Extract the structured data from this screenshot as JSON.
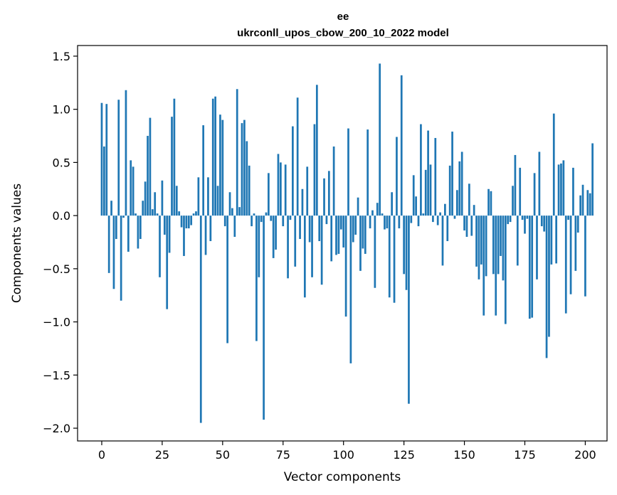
{
  "chart_data": {
    "type": "bar",
    "title": "ee",
    "subtitle": "ukrconll_upos_cbow_200_10_2022 model",
    "xlabel": "Vector components",
    "ylabel": "Components values",
    "xlim": [
      -10,
      209
    ],
    "ylim": [
      -2.12,
      1.6
    ],
    "x_ticks": [
      0,
      25,
      50,
      75,
      100,
      125,
      150,
      175,
      200
    ],
    "y_ticks": [
      -2.0,
      -1.5,
      -1.0,
      -0.5,
      0.0,
      0.5,
      1.0,
      1.5
    ],
    "y_tick_labels": [
      "−2.0",
      "−1.5",
      "−1.0",
      "−0.5",
      "0.0",
      "0.5",
      "1.0",
      "1.5"
    ],
    "bar_color": "#1f77b4",
    "grid": false,
    "values": [
      1.06,
      0.65,
      1.05,
      -0.54,
      0.14,
      -0.69,
      -0.22,
      1.09,
      -0.8,
      -0.02,
      1.18,
      -0.34,
      0.52,
      0.46,
      0.02,
      -0.31,
      -0.22,
      0.14,
      0.32,
      0.75,
      0.92,
      0.06,
      0.22,
      0.02,
      -0.58,
      0.33,
      -0.18,
      -0.88,
      -0.35,
      0.93,
      1.1,
      0.28,
      0.04,
      -0.11,
      -0.38,
      -0.12,
      -0.12,
      -0.09,
      0.02,
      0.04,
      0.36,
      -1.95,
      0.85,
      -0.37,
      0.36,
      -0.24,
      1.1,
      1.12,
      0.28,
      0.95,
      0.9,
      -0.1,
      -1.2,
      0.22,
      0.07,
      -0.2,
      1.19,
      0.08,
      0.87,
      0.9,
      0.7,
      0.47,
      -0.1,
      0.02,
      -1.18,
      -0.58,
      -0.06,
      -1.92,
      0.03,
      0.4,
      -0.05,
      -0.4,
      -0.32,
      0.58,
      0.5,
      -0.1,
      0.48,
      -0.59,
      -0.04,
      0.84,
      -0.48,
      1.11,
      -0.22,
      0.25,
      -0.77,
      0.46,
      -0.25,
      -0.58,
      0.86,
      1.23,
      -0.24,
      -0.65,
      0.35,
      -0.08,
      0.42,
      -0.43,
      0.65,
      -0.37,
      -0.36,
      -0.13,
      -0.3,
      -0.95,
      0.82,
      -1.39,
      -0.25,
      -0.18,
      0.17,
      -0.52,
      -0.31,
      -0.36,
      0.81,
      -0.12,
      0.05,
      -0.68,
      0.12,
      1.43,
      0.02,
      -0.13,
      -0.12,
      -0.77,
      0.22,
      -0.82,
      0.74,
      -0.12,
      1.32,
      -0.55,
      -0.7,
      -1.77,
      -0.07,
      0.38,
      0.18,
      -0.1,
      0.86,
      0.02,
      0.43,
      0.8,
      0.48,
      -0.06,
      0.73,
      -0.09,
      0.03,
      -0.47,
      0.11,
      -0.24,
      0.47,
      0.79,
      -0.03,
      0.24,
      0.51,
      0.6,
      -0.14,
      -0.2,
      0.3,
      -0.19,
      0.1,
      -0.48,
      -0.6,
      -0.46,
      -0.94,
      -0.57,
      0.25,
      0.23,
      -0.55,
      -0.94,
      -0.55,
      -0.38,
      -0.61,
      -1.02,
      -0.08,
      -0.06,
      0.28,
      0.57,
      -0.47,
      0.45,
      -0.04,
      -0.17,
      -0.03,
      -0.97,
      -0.96,
      0.4,
      -0.6,
      0.6,
      -0.1,
      -0.15,
      -1.34,
      -1.14,
      -0.46,
      0.96,
      -0.45,
      0.48,
      0.49,
      0.52,
      -0.92,
      -0.04,
      -0.74,
      0.45,
      -0.52,
      -0.16,
      0.19,
      0.29,
      -0.76,
      0.24,
      0.21,
      0.68
    ]
  }
}
